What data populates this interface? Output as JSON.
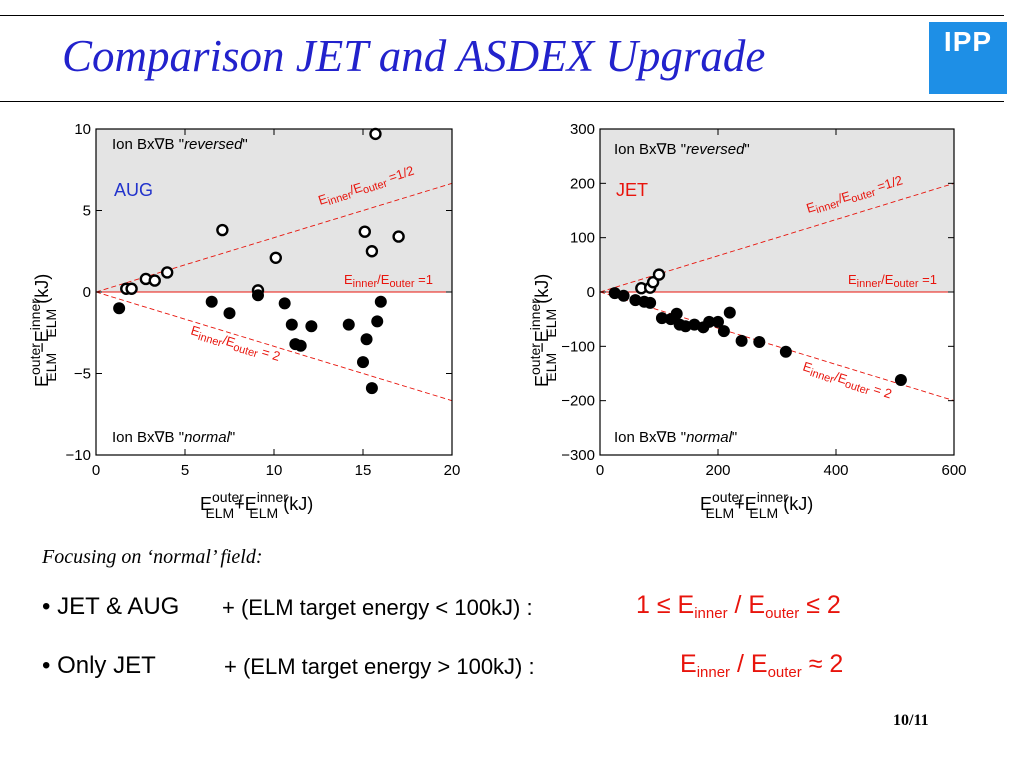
{
  "slide": {
    "title": "Comparison JET and ASDEX Upgrade",
    "logo": "IPP",
    "focus_label": "Focusing on ‘normal’ field:",
    "bullet1": {
      "lead": "• JET & AUG",
      "rest": "+ (ELM target energy  < 100kJ) :",
      "rel_a": "1 ≤ E",
      "sub_a": "inner",
      "slash": " / E",
      "sub_b": "outer",
      "rel_b": " ≤ 2"
    },
    "bullet2": {
      "lead": "• Only JET",
      "rest": "+ (ELM target energy  > 100kJ) :",
      "rel_a": "E",
      "sub_a": "inner",
      "slash": " / E",
      "sub_b": "outer",
      "rel_b": " ≈ 2"
    },
    "page_number": "10/11"
  },
  "chart_data": [
    {
      "type": "scatter",
      "label": "AUG",
      "xlim": [
        0,
        20
      ],
      "ylim": [
        -10,
        10
      ],
      "xticks": [
        0,
        5,
        10,
        15,
        20
      ],
      "yticks": [
        -10,
        -5,
        0,
        5,
        10
      ],
      "xtick_labels": [
        "0",
        "5",
        "10",
        "15",
        "20"
      ],
      "ytick_labels": [
        "−10",
        "−5",
        "0",
        "5",
        "10"
      ],
      "xlabel": {
        "main": "E",
        "sup1": "outer",
        "sub1": "ELM",
        "mid": "+E",
        "sup2": "inner",
        "sub2": "ELM",
        "unit": " (kJ)"
      },
      "ylabel": {
        "main": "E",
        "sup1": "outer",
        "sub1": "ELM",
        "mid": "−E",
        "sup2": "inner",
        "sub2": "ELM",
        "unit": " (kJ)"
      },
      "region_top": {
        "prefix": "Ion Bx∇B \"",
        "emph": "reversed",
        "suffix": "\""
      },
      "region_bottom": {
        "prefix": "Ion Bx∇B \"",
        "emph": "normal",
        "suffix": "\""
      },
      "lines": [
        {
          "label_main": "E",
          "sub1": "inner",
          "mid": "/E",
          "sub2": "outer",
          "tail": " =1/2",
          "slope": 0.3333
        },
        {
          "label_main": "E",
          "sub1": "inner",
          "mid": "/E",
          "sub2": "outer",
          "tail": " =1",
          "slope": 0
        },
        {
          "label_main": "E",
          "sub1": "inner",
          "mid": "/E",
          "sub2": "outer",
          "tail": " = 2",
          "slope": -0.3333
        }
      ],
      "series": [
        {
          "marker": "open",
          "points": [
            [
              1.7,
              0.2
            ],
            [
              2.0,
              0.2
            ],
            [
              2.8,
              0.8
            ],
            [
              3.3,
              0.7
            ],
            [
              4.0,
              1.2
            ],
            [
              7.1,
              3.8
            ],
            [
              9.1,
              0.1
            ],
            [
              10.1,
              2.1
            ],
            [
              15.1,
              3.7
            ],
            [
              15.5,
              2.5
            ],
            [
              15.7,
              9.7
            ],
            [
              17.0,
              3.4
            ]
          ]
        },
        {
          "marker": "filled",
          "points": [
            [
              1.3,
              -1.0
            ],
            [
              6.5,
              -0.6
            ],
            [
              7.5,
              -1.3
            ],
            [
              9.1,
              -0.2
            ],
            [
              10.6,
              -0.7
            ],
            [
              11.0,
              -2.0
            ],
            [
              11.2,
              -3.2
            ],
            [
              11.5,
              -3.3
            ],
            [
              12.1,
              -2.1
            ],
            [
              14.2,
              -2.0
            ],
            [
              15.0,
              -4.3
            ],
            [
              15.2,
              -2.9
            ],
            [
              15.5,
              -5.9
            ],
            [
              15.8,
              -1.8
            ],
            [
              16.0,
              -0.6
            ]
          ]
        }
      ]
    },
    {
      "type": "scatter",
      "label": "JET",
      "xlim": [
        0,
        600
      ],
      "ylim": [
        -300,
        300
      ],
      "xticks": [
        0,
        200,
        400,
        600
      ],
      "yticks": [
        -300,
        -200,
        -100,
        0,
        100,
        200,
        300
      ],
      "xtick_labels": [
        "0",
        "200",
        "400",
        "600"
      ],
      "ytick_labels": [
        "−300",
        "−200",
        "−100",
        "0",
        "100",
        "200",
        "300"
      ],
      "xlabel": {
        "main": "E",
        "sup1": "outer",
        "sub1": "ELM",
        "mid": "+E",
        "sup2": "inner",
        "sub2": "ELM",
        "unit": " (kJ)"
      },
      "ylabel": {
        "main": "E",
        "sup1": "outer",
        "sub1": "ELM",
        "mid": "−E",
        "sup2": "inner",
        "sub2": "ELM",
        "unit": " (kJ)"
      },
      "region_top": {
        "prefix": "Ion Bx∇B \"",
        "emph": "reversed",
        "suffix": "\""
      },
      "region_bottom": {
        "prefix": "Ion Bx∇B \"",
        "emph": "normal",
        "suffix": "\""
      },
      "lines": [
        {
          "label_main": "E",
          "sub1": "inner",
          "mid": "/E",
          "sub2": "outer",
          "tail": " =1/2",
          "slope": 0.3333
        },
        {
          "label_main": "E",
          "sub1": "inner",
          "mid": "/E",
          "sub2": "outer",
          "tail": " =1",
          "slope": 0
        },
        {
          "label_main": "E",
          "sub1": "inner",
          "mid": "/E",
          "sub2": "outer",
          "tail": " = 2",
          "slope": -0.3333
        }
      ],
      "series": [
        {
          "marker": "open",
          "points": [
            [
              70,
              7
            ],
            [
              85,
              8
            ],
            [
              90,
              18
            ],
            [
              100,
              32
            ]
          ]
        },
        {
          "marker": "filled",
          "points": [
            [
              25,
              -2
            ],
            [
              40,
              -7
            ],
            [
              60,
              -15
            ],
            [
              75,
              -18
            ],
            [
              85,
              -20
            ],
            [
              105,
              -48
            ],
            [
              120,
              -50
            ],
            [
              130,
              -40
            ],
            [
              135,
              -60
            ],
            [
              145,
              -63
            ],
            [
              160,
              -60
            ],
            [
              175,
              -65
            ],
            [
              185,
              -55
            ],
            [
              200,
              -55
            ],
            [
              210,
              -72
            ],
            [
              220,
              -38
            ],
            [
              240,
              -90
            ],
            [
              270,
              -92
            ],
            [
              315,
              -110
            ],
            [
              510,
              -162
            ]
          ]
        }
      ]
    }
  ]
}
